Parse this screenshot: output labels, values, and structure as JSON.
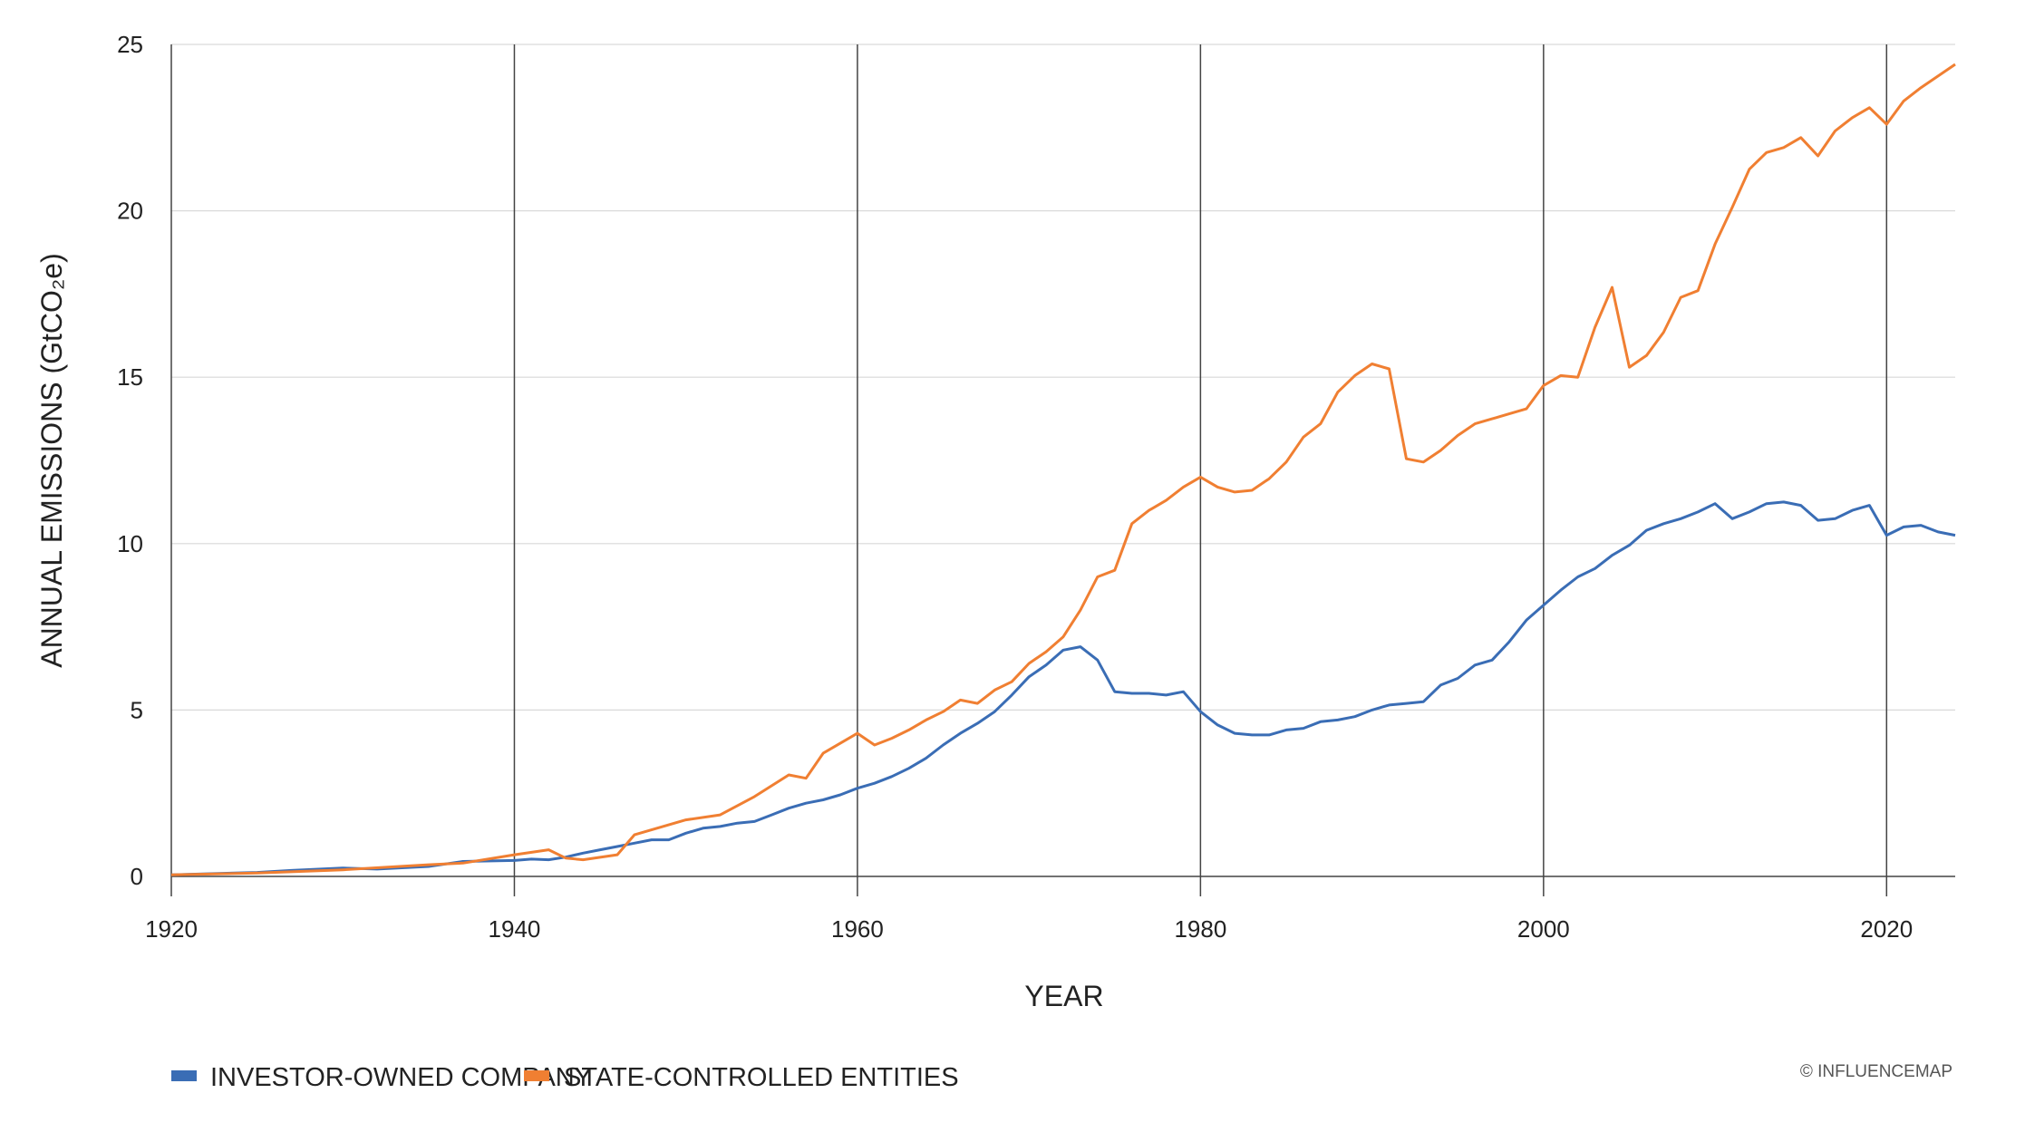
{
  "chart_data": {
    "type": "line",
    "title": "",
    "xlabel": "YEAR",
    "ylabel": "ANNUAL EMISSIONS (GtCO₂e)",
    "xlim": [
      1920,
      2024
    ],
    "ylim": [
      0,
      25
    ],
    "xticks": [
      1920,
      1940,
      1960,
      1980,
      2000,
      2020
    ],
    "yticks": [
      0,
      5,
      10,
      15,
      20,
      25
    ],
    "grid": {
      "horizontal": true,
      "vertical_at_xticks": true
    },
    "legend_position": "bottom-left",
    "credit": "© INFLUENCEMAP",
    "series": [
      {
        "name": "INVESTOR-OWNED COMPANY",
        "color": "#3a6db5",
        "points": [
          [
            1920,
            0.05
          ],
          [
            1925,
            0.12
          ],
          [
            1927,
            0.18
          ],
          [
            1930,
            0.25
          ],
          [
            1932,
            0.22
          ],
          [
            1935,
            0.3
          ],
          [
            1937,
            0.45
          ],
          [
            1940,
            0.48
          ],
          [
            1941,
            0.52
          ],
          [
            1942,
            0.5
          ],
          [
            1943,
            0.58
          ],
          [
            1944,
            0.7
          ],
          [
            1945,
            0.8
          ],
          [
            1946,
            0.9
          ],
          [
            1947,
            1.0
          ],
          [
            1948,
            1.1
          ],
          [
            1949,
            1.1
          ],
          [
            1950,
            1.3
          ],
          [
            1951,
            1.45
          ],
          [
            1952,
            1.5
          ],
          [
            1953,
            1.6
          ],
          [
            1954,
            1.65
          ],
          [
            1955,
            1.85
          ],
          [
            1956,
            2.05
          ],
          [
            1957,
            2.2
          ],
          [
            1958,
            2.3
          ],
          [
            1959,
            2.45
          ],
          [
            1960,
            2.65
          ],
          [
            1961,
            2.8
          ],
          [
            1962,
            3.0
          ],
          [
            1963,
            3.25
          ],
          [
            1964,
            3.55
          ],
          [
            1965,
            3.95
          ],
          [
            1966,
            4.3
          ],
          [
            1967,
            4.6
          ],
          [
            1968,
            4.95
          ],
          [
            1969,
            5.45
          ],
          [
            1970,
            6.0
          ],
          [
            1971,
            6.35
          ],
          [
            1972,
            6.8
          ],
          [
            1973,
            6.9
          ],
          [
            1974,
            6.5
          ],
          [
            1975,
            5.55
          ],
          [
            1976,
            5.5
          ],
          [
            1977,
            5.5
          ],
          [
            1978,
            5.45
          ],
          [
            1979,
            5.55
          ],
          [
            1980,
            4.95
          ],
          [
            1981,
            4.55
          ],
          [
            1982,
            4.3
          ],
          [
            1983,
            4.25
          ],
          [
            1984,
            4.25
          ],
          [
            1985,
            4.4
          ],
          [
            1986,
            4.45
          ],
          [
            1987,
            4.65
          ],
          [
            1988,
            4.7
          ],
          [
            1989,
            4.8
          ],
          [
            1990,
            5.0
          ],
          [
            1991,
            5.15
          ],
          [
            1992,
            5.2
          ],
          [
            1993,
            5.25
          ],
          [
            1994,
            5.75
          ],
          [
            1995,
            5.95
          ],
          [
            1996,
            6.35
          ],
          [
            1997,
            6.5
          ],
          [
            1998,
            7.05
          ],
          [
            1999,
            7.7
          ],
          [
            2000,
            8.15
          ],
          [
            2001,
            8.6
          ],
          [
            2002,
            9.0
          ],
          [
            2003,
            9.25
          ],
          [
            2004,
            9.65
          ],
          [
            2005,
            9.95
          ],
          [
            2006,
            10.4
          ],
          [
            2007,
            10.6
          ],
          [
            2008,
            10.75
          ],
          [
            2009,
            10.95
          ],
          [
            2010,
            11.2
          ],
          [
            2011,
            10.75
          ],
          [
            2012,
            10.95
          ],
          [
            2013,
            11.2
          ],
          [
            2014,
            11.25
          ],
          [
            2015,
            11.15
          ],
          [
            2016,
            10.7
          ],
          [
            2017,
            10.75
          ],
          [
            2018,
            11.0
          ],
          [
            2019,
            11.15
          ],
          [
            2020,
            10.25
          ],
          [
            2021,
            10.5
          ],
          [
            2022,
            10.55
          ],
          [
            2023,
            10.35
          ],
          [
            2024,
            10.25
          ]
        ]
      },
      {
        "name": "STATE-CONTROLLED ENTITIES",
        "color": "#f07f32",
        "points": [
          [
            1920,
            0.05
          ],
          [
            1925,
            0.1
          ],
          [
            1930,
            0.2
          ],
          [
            1935,
            0.35
          ],
          [
            1937,
            0.4
          ],
          [
            1940,
            0.65
          ],
          [
            1942,
            0.8
          ],
          [
            1943,
            0.55
          ],
          [
            1944,
            0.5
          ],
          [
            1946,
            0.65
          ],
          [
            1947,
            1.25
          ],
          [
            1948,
            1.4
          ],
          [
            1950,
            1.7
          ],
          [
            1952,
            1.85
          ],
          [
            1954,
            2.4
          ],
          [
            1956,
            3.05
          ],
          [
            1957,
            2.95
          ],
          [
            1958,
            3.7
          ],
          [
            1960,
            4.3
          ],
          [
            1961,
            3.95
          ],
          [
            1962,
            4.15
          ],
          [
            1963,
            4.4
          ],
          [
            1964,
            4.7
          ],
          [
            1965,
            4.95
          ],
          [
            1966,
            5.3
          ],
          [
            1967,
            5.2
          ],
          [
            1968,
            5.6
          ],
          [
            1969,
            5.85
          ],
          [
            1970,
            6.4
          ],
          [
            1971,
            6.75
          ],
          [
            1972,
            7.2
          ],
          [
            1973,
            8.0
          ],
          [
            1974,
            9.0
          ],
          [
            1975,
            9.2
          ],
          [
            1976,
            10.6
          ],
          [
            1977,
            11.0
          ],
          [
            1978,
            11.3
          ],
          [
            1979,
            11.7
          ],
          [
            1980,
            12.0
          ],
          [
            1981,
            11.7
          ],
          [
            1982,
            11.55
          ],
          [
            1983,
            11.6
          ],
          [
            1984,
            11.95
          ],
          [
            1985,
            12.45
          ],
          [
            1986,
            13.2
          ],
          [
            1987,
            13.6
          ],
          [
            1988,
            14.55
          ],
          [
            1989,
            15.05
          ],
          [
            1990,
            15.4
          ],
          [
            1991,
            15.25
          ],
          [
            1992,
            12.55
          ],
          [
            1993,
            12.45
          ],
          [
            1994,
            12.8
          ],
          [
            1995,
            13.25
          ],
          [
            1996,
            13.6
          ],
          [
            1997,
            13.75
          ],
          [
            1998,
            13.9
          ],
          [
            1999,
            14.05
          ],
          [
            2000,
            14.75
          ],
          [
            2001,
            15.05
          ],
          [
            2002,
            15.0
          ],
          [
            2003,
            16.5
          ],
          [
            2004,
            17.7
          ],
          [
            2005,
            15.3
          ],
          [
            2006,
            15.65
          ],
          [
            2007,
            16.35
          ],
          [
            2008,
            17.4
          ],
          [
            2009,
            17.6
          ],
          [
            2010,
            19.0
          ],
          [
            2011,
            20.1
          ],
          [
            2012,
            21.25
          ],
          [
            2013,
            21.75
          ],
          [
            2014,
            21.9
          ],
          [
            2015,
            22.2
          ],
          [
            2016,
            21.65
          ],
          [
            2017,
            22.4
          ],
          [
            2018,
            22.8
          ],
          [
            2019,
            23.1
          ],
          [
            2020,
            22.6
          ],
          [
            2021,
            23.3
          ],
          [
            2022,
            23.7
          ],
          [
            2023,
            24.05
          ],
          [
            2024,
            24.4
          ]
        ]
      }
    ]
  }
}
